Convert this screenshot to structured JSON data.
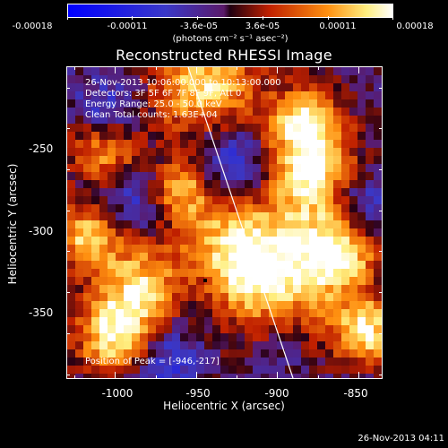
{
  "colorbar": {
    "ticks": [
      "-0.00018",
      "-0.00011",
      "-3.6e-05",
      "3.6e-05",
      "0.00011",
      "0.00018"
    ],
    "units": "(photons cm⁻² s⁻¹ asec⁻²)",
    "range": [
      -0.00018,
      0.00018
    ]
  },
  "plot": {
    "title": "Reconstructed RHESSI Image",
    "info_lines": [
      "26-Nov-2013 10:06:00.000 to 10:13:00.000",
      "Detectors: 3F 5F 6F 7F 8F 9F, Att 0",
      "Energy Range: 25.0 - 50.0 keV",
      "Clean     Total counts: 1.63E+04"
    ],
    "peak_label": "Position of Peak = [-946,-217]"
  },
  "chart_data": {
    "type": "heatmap",
    "title": "Reconstructed RHESSI Image",
    "xlabel": "Heliocentric X (arcsec)",
    "ylabel": "Heliocentric Y (arcsec)",
    "xlim": [
      -1030,
      -835
    ],
    "ylim": [
      -393,
      -202
    ],
    "xticks": [
      "-1000",
      "-950",
      "-900",
      "-850"
    ],
    "yticks": [
      "-250",
      "-300",
      "-350"
    ],
    "peak": [
      -946,
      -217
    ],
    "limb_line": [
      [
        -955,
        -202
      ],
      [
        -890,
        -393
      ]
    ],
    "colormap": "blue-purple-red-yellow-white"
  },
  "footer": {
    "timestamp": "26-Nov-2013 04:11"
  }
}
